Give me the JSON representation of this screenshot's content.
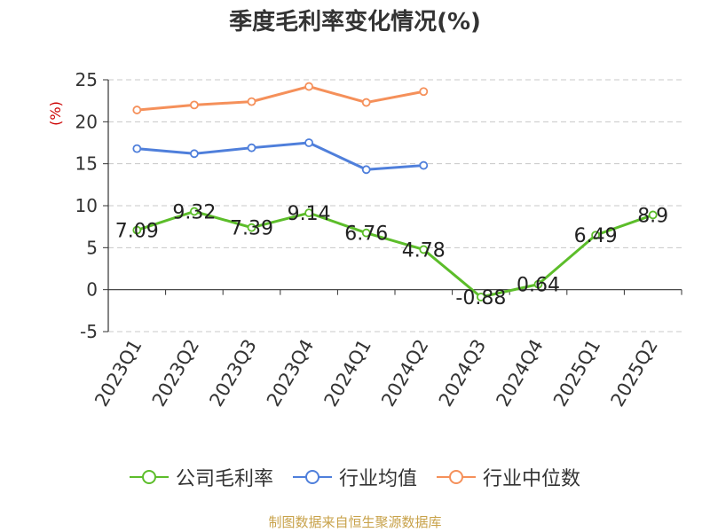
{
  "title": "季度毛利率变化情况(%)",
  "source": "制图数据来自恒生聚源数据库",
  "chart_data": {
    "type": "line",
    "title": "季度毛利率变化情况(%)",
    "ylabel": "(%)",
    "xlabel": "",
    "ylim": [
      -5,
      25
    ],
    "yticks": [
      -5,
      0,
      5,
      10,
      15,
      20,
      25
    ],
    "grid": true,
    "legend_position": "bottom",
    "categories": [
      "2023Q1",
      "2023Q2",
      "2023Q3",
      "2023Q4",
      "2024Q1",
      "2024Q2",
      "2024Q3",
      "2024Q4",
      "2025Q1",
      "2025Q2"
    ],
    "series": [
      {
        "name": "公司毛利率",
        "color": "#5cbd2a",
        "values": [
          7.09,
          9.32,
          7.39,
          9.14,
          6.76,
          4.78,
          -0.88,
          0.64,
          6.49,
          8.9
        ],
        "labels": [
          "7.09",
          "9.32",
          "7.39",
          "9.14",
          "6.76",
          "4.78",
          "-0.88",
          "0.64",
          "6.49",
          "8.9"
        ],
        "show_labels": true
      },
      {
        "name": "行业均值",
        "color": "#4f7fdb",
        "values": [
          16.8,
          16.2,
          16.9,
          17.5,
          14.3,
          14.8,
          null,
          null,
          null,
          null
        ],
        "show_labels": false
      },
      {
        "name": "行业中位数",
        "color": "#f5905a",
        "values": [
          21.4,
          22.0,
          22.4,
          24.2,
          22.3,
          23.6,
          null,
          null,
          null,
          null
        ],
        "show_labels": false
      }
    ]
  }
}
